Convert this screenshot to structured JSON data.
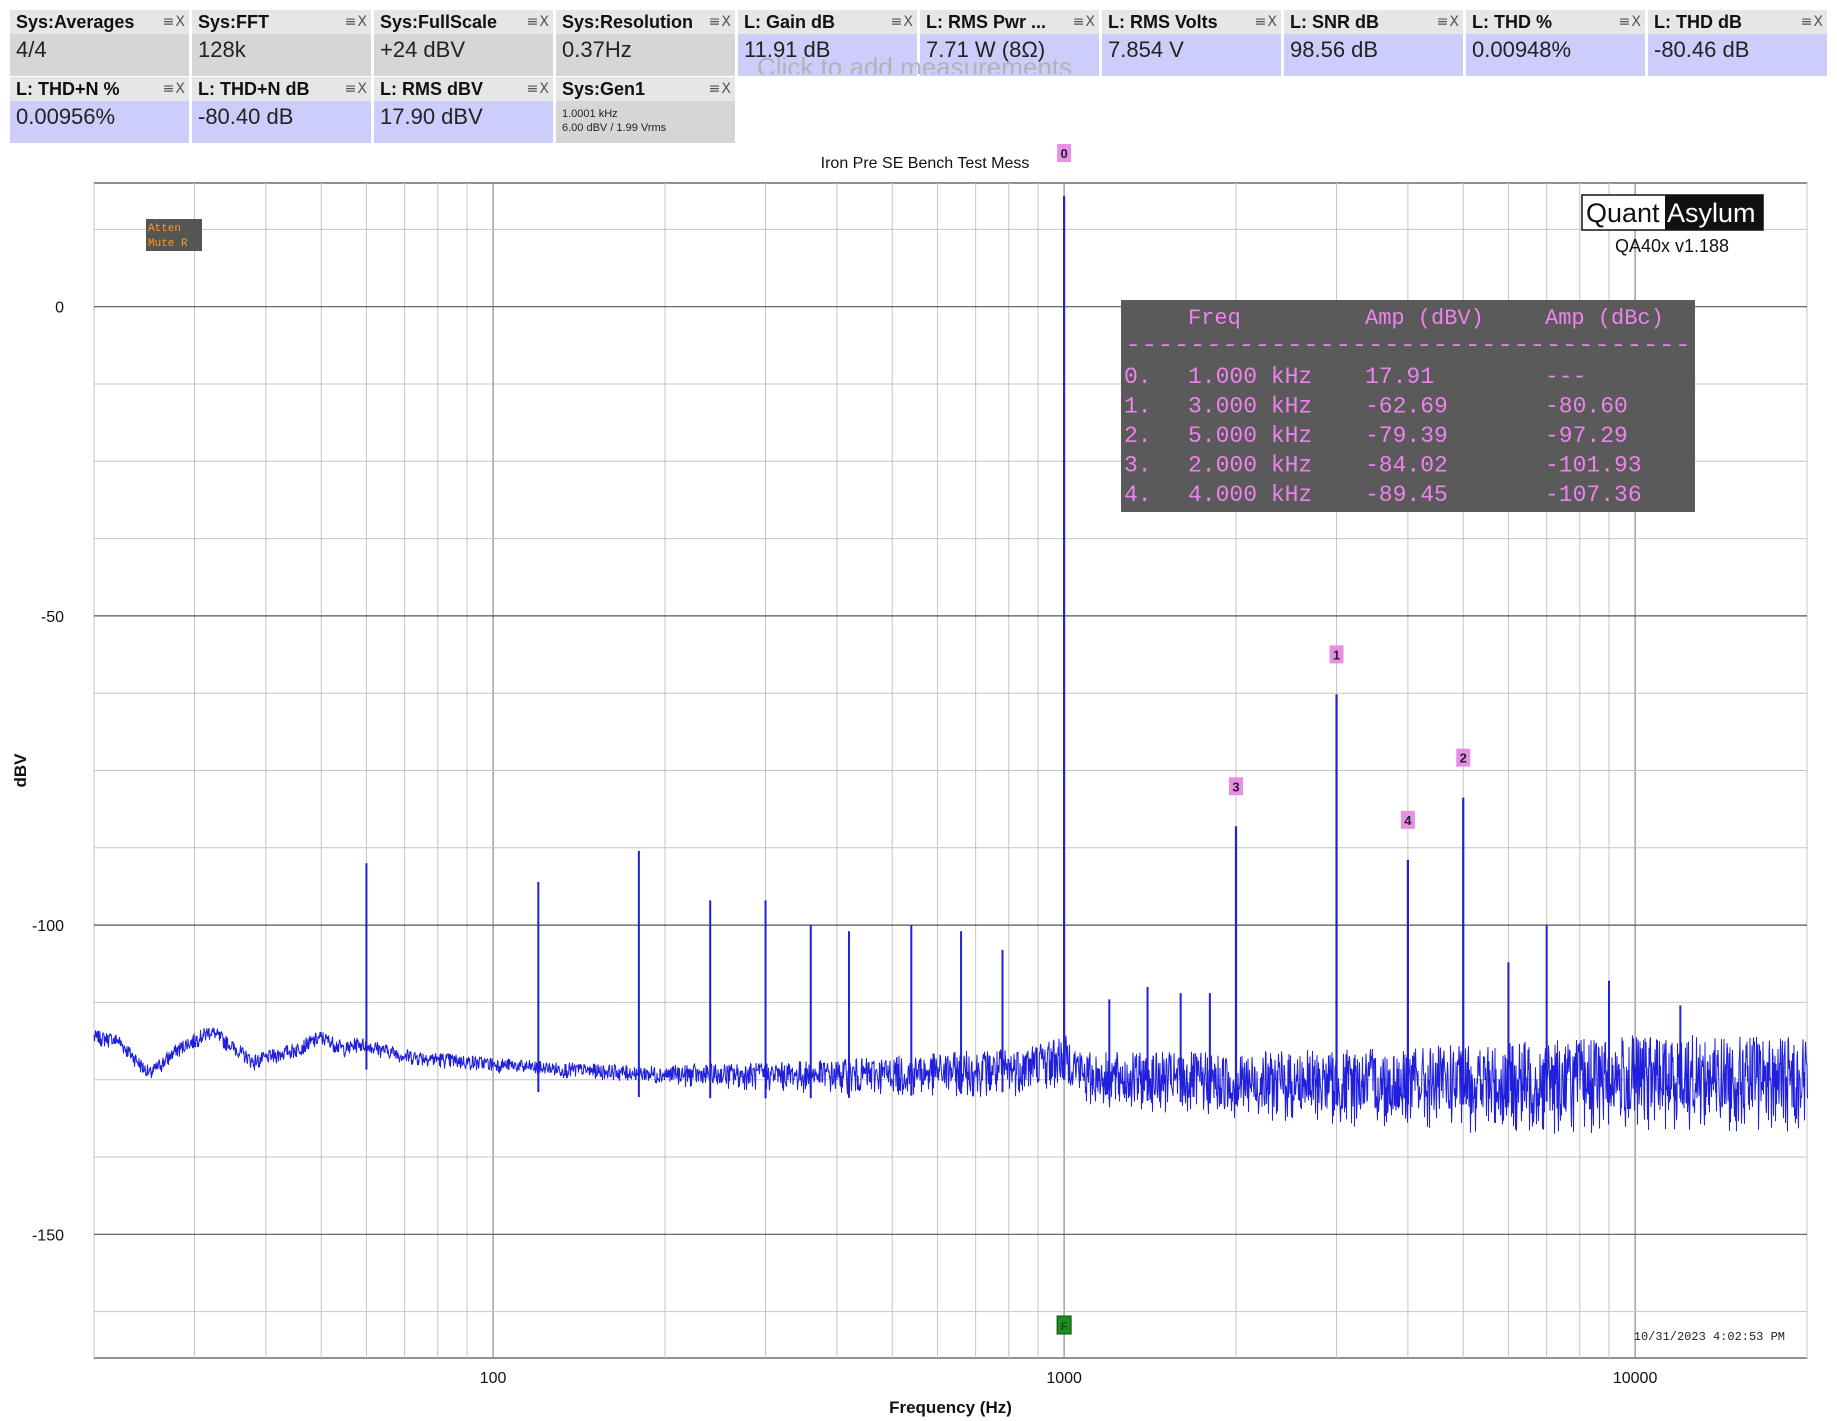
{
  "tiles": [
    {
      "title": "Sys:Averages",
      "value": "4/4",
      "kind": "sys",
      "row": 0,
      "col": 0
    },
    {
      "title": "Sys:FFT",
      "value": "128k",
      "kind": "sys",
      "row": 0,
      "col": 1
    },
    {
      "title": "Sys:FullScale",
      "value": "+24 dBV",
      "kind": "sys",
      "row": 0,
      "col": 2
    },
    {
      "title": "Sys:Resolution",
      "value": "0.37Hz",
      "kind": "sys",
      "row": 0,
      "col": 3
    },
    {
      "title": "L: Gain dB",
      "value": "11.91 dB",
      "kind": "lch",
      "row": 0,
      "col": 4
    },
    {
      "title": "L: RMS Pwr ...",
      "value": "7.71 W (8Ω)",
      "kind": "lch",
      "row": 0,
      "col": 5
    },
    {
      "title": "L: RMS Volts",
      "value": "7.854 V",
      "kind": "lch",
      "row": 0,
      "col": 6
    },
    {
      "title": "L: SNR dB",
      "value": "98.56 dB",
      "kind": "lch",
      "row": 0,
      "col": 7
    },
    {
      "title": "L: THD %",
      "value": "0.00948%",
      "kind": "lch",
      "row": 0,
      "col": 8
    },
    {
      "title": "L: THD dB",
      "value": "-80.46 dB",
      "kind": "lch",
      "row": 0,
      "col": 9
    },
    {
      "title": "L: THD+N %",
      "value": "0.00956%",
      "kind": "lch",
      "row": 1,
      "col": 0
    },
    {
      "title": "L: THD+N dB",
      "value": "-80.40 dB",
      "kind": "lch",
      "row": 1,
      "col": 1
    },
    {
      "title": "L: RMS dBV",
      "value": "17.90 dBV",
      "kind": "lch",
      "row": 1,
      "col": 2
    },
    {
      "title": "Sys:Gen1",
      "value_lines": [
        "1.0001 kHz",
        "6.00 dBV  / 1.99 Vrms"
      ],
      "kind": "sys",
      "row": 1,
      "col": 3
    }
  ],
  "tile_controls": "≡X",
  "add_measurement_hint": "Click to add measurements",
  "chart_data": {
    "type": "line",
    "title": "Iron Pre SE Bench Test Mess",
    "xlabel": "Frequency (Hz)",
    "ylabel": "dBV",
    "x_scale": "log",
    "xlim": [
      20,
      20000
    ],
    "ylim": [
      -170,
      20
    ],
    "x_ticks": [
      {
        "value": 100,
        "label": "100"
      },
      {
        "value": 1000,
        "label": "1000"
      },
      {
        "value": 10000,
        "label": "10000"
      }
    ],
    "y_ticks": [
      {
        "value": 0,
        "label": "0"
      },
      {
        "value": -50,
        "label": "-50"
      },
      {
        "value": -100,
        "label": "-100"
      },
      {
        "value": -150,
        "label": "-150"
      }
    ],
    "grid": true,
    "line_color": "#1f1fdc",
    "noise_floor": [
      [
        20,
        -118
      ],
      [
        22,
        -118.5
      ],
      [
        25,
        -124
      ],
      [
        28,
        -120
      ],
      [
        32,
        -117
      ],
      [
        38,
        -122
      ],
      [
        45,
        -120
      ],
      [
        50,
        -118
      ],
      [
        55,
        -120
      ],
      [
        58,
        -119
      ],
      [
        70,
        -121
      ],
      [
        90,
        -122
      ],
      [
        120,
        -123
      ],
      [
        200,
        -124
      ],
      [
        400,
        -124
      ],
      [
        800,
        -123
      ],
      [
        1000,
        -121
      ],
      [
        1100,
        -124
      ],
      [
        2000,
        -125
      ],
      [
        5000,
        -125
      ],
      [
        10000,
        -124
      ],
      [
        20000,
        -124
      ]
    ],
    "spurs": [
      {
        "freq": 60,
        "amp": -90
      },
      {
        "freq": 120,
        "amp": -93
      },
      {
        "freq": 180,
        "amp": -88
      },
      {
        "freq": 240,
        "amp": -96
      },
      {
        "freq": 300,
        "amp": -96
      },
      {
        "freq": 360,
        "amp": -100
      },
      {
        "freq": 420,
        "amp": -101
      },
      {
        "freq": 540,
        "amp": -100
      },
      {
        "freq": 660,
        "amp": -101
      },
      {
        "freq": 780,
        "amp": -104
      },
      {
        "freq": 1200,
        "amp": -112
      },
      {
        "freq": 1400,
        "amp": -110
      },
      {
        "freq": 1600,
        "amp": -111
      },
      {
        "freq": 1800,
        "amp": -111
      },
      {
        "freq": 6000,
        "amp": -106
      },
      {
        "freq": 7000,
        "amp": -100
      },
      {
        "freq": 9000,
        "amp": -109
      },
      {
        "freq": 12000,
        "amp": -113
      }
    ],
    "peaks": [
      {
        "marker": "0",
        "freq": 1000,
        "amp": 17.91
      },
      {
        "marker": "1",
        "freq": 3000,
        "amp": -62.69
      },
      {
        "marker": "2",
        "freq": 5000,
        "amp": -79.39
      },
      {
        "marker": "3",
        "freq": 2000,
        "amp": -84.02
      },
      {
        "marker": "4",
        "freq": 4000,
        "amp": -89.45
      }
    ],
    "harmonic_table": {
      "headers": [
        "Freq",
        "Amp (dBV)",
        "Amp (dBc)"
      ],
      "separator": "-----------------------------------",
      "rows": [
        {
          "idx": "0.",
          "freq": "1.000 kHz",
          "dbv": "17.91",
          "dbc": "---"
        },
        {
          "idx": "1.",
          "freq": "3.000 kHz",
          "dbv": "-62.69",
          "dbc": "-80.60"
        },
        {
          "idx": "2.",
          "freq": "5.000 kHz",
          "dbv": "-79.39",
          "dbc": "-97.29"
        },
        {
          "idx": "3.",
          "freq": "2.000 kHz",
          "dbv": "-84.02",
          "dbc": "-101.93"
        },
        {
          "idx": "4.",
          "freq": "4.000 kHz",
          "dbv": "-89.45",
          "dbc": "-107.36"
        }
      ]
    },
    "status_box": [
      "Atten",
      "Mute R"
    ],
    "brand": {
      "part1": "Quant",
      "part2": "Asylum",
      "version": "QA40x v1.188"
    },
    "generator_marker": {
      "label": "F",
      "freq": 1000
    },
    "timestamp": "10/31/2023 4:02:53 PM"
  },
  "colors": {
    "trace": "#1f1fdc",
    "marker_bg": "#e58fe6",
    "table_bg": "#5a5a5a",
    "table_text": "#ee82ee",
    "status_text": "#ff9a1a",
    "status_bg": "#555555",
    "gen_marker": "#1e8c1e"
  }
}
